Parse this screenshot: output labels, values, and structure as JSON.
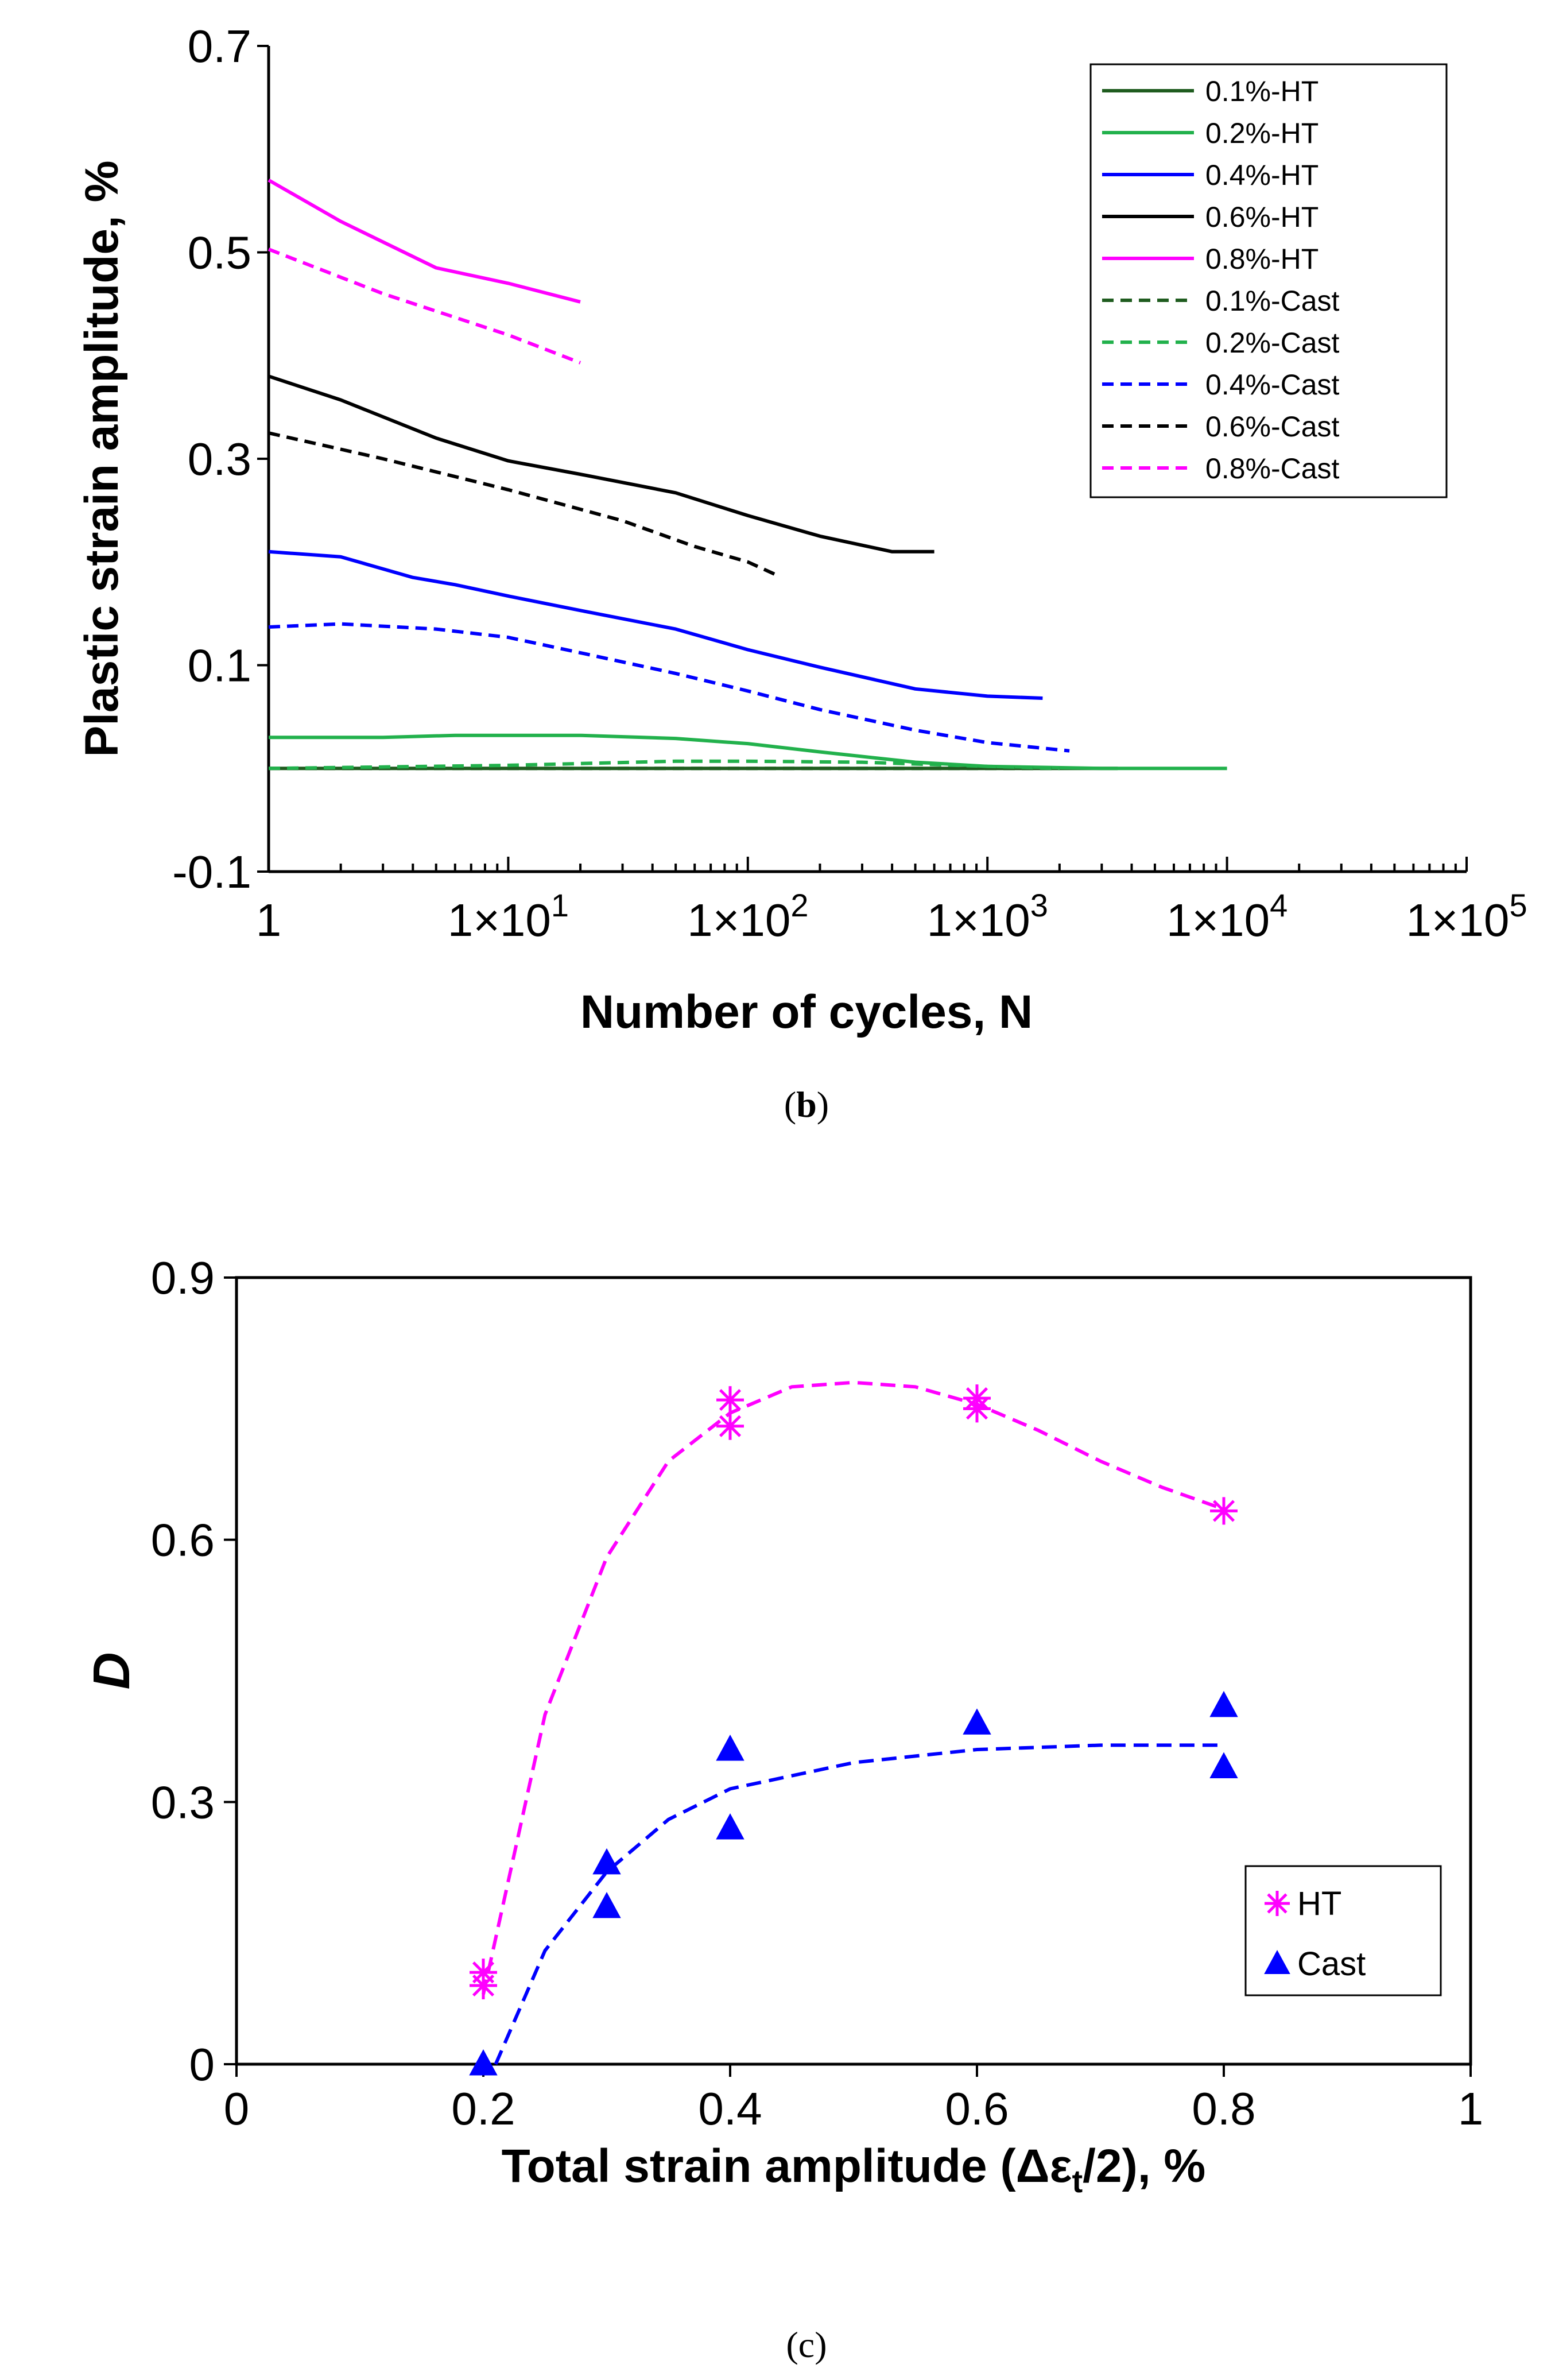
{
  "captions": {
    "b": "b",
    "c": "c"
  },
  "chart_data": [
    {
      "type": "line",
      "panel": "b",
      "xscale": "log",
      "xlabel": "Number of cycles, N",
      "ylabel": "Plastic strain amplitude, %",
      "xlim": [
        1,
        100000
      ],
      "ylim": [
        -0.1,
        0.7
      ],
      "yticks": [
        "0.7",
        "0.5",
        "0.3",
        "0.1",
        "-0.1"
      ],
      "ytick_values": [
        0.7,
        0.5,
        0.3,
        0.1,
        -0.1
      ],
      "xticks": [
        "1",
        "1×10",
        "1×10",
        "1×10",
        "1×10",
        "1×10"
      ],
      "xtick_exp": [
        "",
        "1",
        "2",
        "3",
        "4",
        "5"
      ],
      "xtick_values": [
        1,
        10,
        100,
        1000,
        10000,
        100000
      ],
      "legend_position": "top-right",
      "series": [
        {
          "name": "0.1%-HT",
          "color": "#1f5c1f",
          "dash": false,
          "points": [
            [
              1,
              0.0
            ],
            [
              10,
              0.0
            ],
            [
              100,
              0.0
            ],
            [
              1000,
              0.0
            ],
            [
              3500,
              0.0
            ]
          ]
        },
        {
          "name": "0.2%-HT",
          "color": "#22b14c",
          "dash": false,
          "points": [
            [
              1,
              0.03
            ],
            [
              3,
              0.03
            ],
            [
              6,
              0.032
            ],
            [
              10,
              0.032
            ],
            [
              20,
              0.032
            ],
            [
              50,
              0.029
            ],
            [
              100,
              0.024
            ],
            [
              200,
              0.016
            ],
            [
              500,
              0.006
            ],
            [
              1000,
              0.002
            ],
            [
              3000,
              0.0
            ],
            [
              10000,
              0.0
            ]
          ]
        },
        {
          "name": "0.4%-HT",
          "color": "#0000ff",
          "dash": false,
          "points": [
            [
              1,
              0.21
            ],
            [
              2,
              0.205
            ],
            [
              4,
              0.185
            ],
            [
              6,
              0.178
            ],
            [
              10,
              0.167
            ],
            [
              20,
              0.153
            ],
            [
              50,
              0.135
            ],
            [
              100,
              0.115
            ],
            [
              200,
              0.098
            ],
            [
              500,
              0.077
            ],
            [
              1000,
              0.07
            ],
            [
              1700,
              0.068
            ]
          ]
        },
        {
          "name": "0.6%-HT",
          "color": "#000000",
          "dash": false,
          "points": [
            [
              1,
              0.38
            ],
            [
              2,
              0.357
            ],
            [
              5,
              0.32
            ],
            [
              10,
              0.298
            ],
            [
              20,
              0.285
            ],
            [
              50,
              0.267
            ],
            [
              100,
              0.245
            ],
            [
              200,
              0.225
            ],
            [
              400,
              0.21
            ],
            [
              600,
              0.21
            ]
          ]
        },
        {
          "name": "0.8%-HT",
          "color": "#ff00ff",
          "dash": false,
          "points": [
            [
              1,
              0.57
            ],
            [
              2,
              0.53
            ],
            [
              5,
              0.485
            ],
            [
              10,
              0.47
            ],
            [
              20,
              0.452
            ]
          ]
        },
        {
          "name": "0.1%-Cast",
          "color": "#1f5c1f",
          "dash": true,
          "points": [
            [
              1,
              0.0
            ],
            [
              100,
              0.0
            ],
            [
              2000,
              0.0
            ]
          ]
        },
        {
          "name": "0.2%-Cast",
          "color": "#22b14c",
          "dash": true,
          "points": [
            [
              1,
              0.0
            ],
            [
              10,
              0.003
            ],
            [
              50,
              0.007
            ],
            [
              100,
              0.007
            ],
            [
              300,
              0.006
            ],
            [
              1000,
              0.002
            ],
            [
              2000,
              0.0
            ]
          ]
        },
        {
          "name": "0.4%-Cast",
          "color": "#0000ff",
          "dash": true,
          "points": [
            [
              1,
              0.137
            ],
            [
              2,
              0.14
            ],
            [
              5,
              0.135
            ],
            [
              10,
              0.127
            ],
            [
              20,
              0.112
            ],
            [
              50,
              0.092
            ],
            [
              100,
              0.075
            ],
            [
              200,
              0.057
            ],
            [
              500,
              0.037
            ],
            [
              1000,
              0.025
            ],
            [
              2200,
              0.017
            ]
          ]
        },
        {
          "name": "0.6%-Cast",
          "color": "#000000",
          "dash": true,
          "points": [
            [
              1,
              0.325
            ],
            [
              3,
              0.3
            ],
            [
              10,
              0.27
            ],
            [
              30,
              0.24
            ],
            [
              60,
              0.215
            ],
            [
              100,
              0.2
            ],
            [
              130,
              0.188
            ]
          ]
        },
        {
          "name": "0.8%-Cast",
          "color": "#ff00ff",
          "dash": true,
          "points": [
            [
              1,
              0.503
            ],
            [
              3,
              0.46
            ],
            [
              10,
              0.42
            ],
            [
              20,
              0.393
            ]
          ]
        }
      ]
    },
    {
      "type": "scatter",
      "panel": "c",
      "xlabel": "Total strain amplitude (Δε/2), %",
      "xlabel_main": "Total strain amplitude (Δε",
      "xlabel_sub": "t",
      "xlabel_tail": "/2), %",
      "ylabel": "D",
      "xlim": [
        0,
        1
      ],
      "ylim": [
        0,
        0.9
      ],
      "xticks": [
        "0",
        "0.2",
        "0.4",
        "0.6",
        "0.8",
        "1"
      ],
      "xtick_values": [
        0,
        0.2,
        0.4,
        0.6,
        0.8,
        1.0
      ],
      "yticks": [
        "0",
        "0.3",
        "0.6",
        "0.9"
      ],
      "ytick_values": [
        0,
        0.3,
        0.6,
        0.9
      ],
      "legend_position": "bottom-right",
      "series": [
        {
          "name": "HT",
          "color": "#ff00ff",
          "marker": "asterisk",
          "points": [
            [
              0.2,
              0.09
            ],
            [
              0.2,
              0.105
            ],
            [
              0.4,
              0.73
            ],
            [
              0.4,
              0.76
            ],
            [
              0.6,
              0.75
            ],
            [
              0.6,
              0.762
            ],
            [
              0.8,
              0.633
            ]
          ],
          "trend": [
            [
              0.2,
              0.08
            ],
            [
              0.25,
              0.4
            ],
            [
              0.3,
              0.58
            ],
            [
              0.35,
              0.69
            ],
            [
              0.4,
              0.745
            ],
            [
              0.45,
              0.775
            ],
            [
              0.5,
              0.78
            ],
            [
              0.55,
              0.775
            ],
            [
              0.6,
              0.755
            ],
            [
              0.65,
              0.725
            ],
            [
              0.7,
              0.69
            ],
            [
              0.75,
              0.66
            ],
            [
              0.8,
              0.635
            ]
          ]
        },
        {
          "name": "Cast",
          "color": "#0000ff",
          "marker": "triangle",
          "points": [
            [
              0.2,
              0.0
            ],
            [
              0.3,
              0.18
            ],
            [
              0.3,
              0.23
            ],
            [
              0.4,
              0.27
            ],
            [
              0.4,
              0.36
            ],
            [
              0.6,
              0.39
            ],
            [
              0.8,
              0.34
            ],
            [
              0.8,
              0.41
            ]
          ],
          "trend": [
            [
              0.21,
              0.0
            ],
            [
              0.25,
              0.13
            ],
            [
              0.3,
              0.22
            ],
            [
              0.35,
              0.28
            ],
            [
              0.4,
              0.315
            ],
            [
              0.5,
              0.345
            ],
            [
              0.6,
              0.36
            ],
            [
              0.7,
              0.365
            ],
            [
              0.8,
              0.365
            ]
          ]
        }
      ]
    }
  ]
}
